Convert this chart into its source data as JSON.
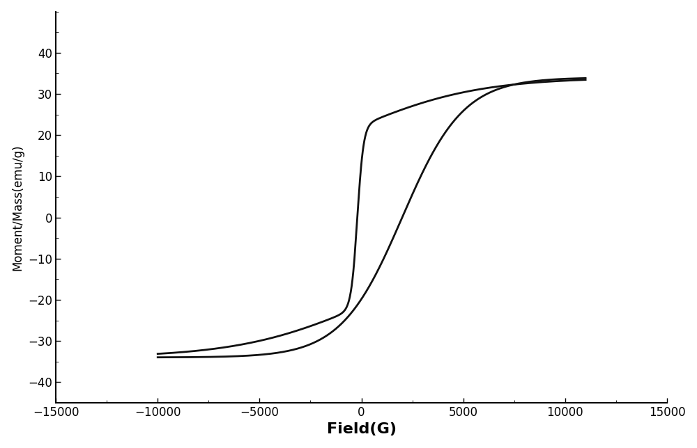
{
  "xlabel": "Field(G)",
  "ylabel": "Moment/Mass(emu/g)",
  "xlim": [
    -15000,
    15000
  ],
  "ylim": [
    -45,
    50
  ],
  "yticks": [
    -40,
    -30,
    -20,
    -10,
    0,
    10,
    20,
    30,
    40
  ],
  "xticks": [
    -15000,
    -10000,
    -5000,
    0,
    5000,
    10000,
    15000
  ],
  "line_color": "#111111",
  "line_width": 2.0,
  "background_color": "#ffffff",
  "xlabel_fontsize": 16,
  "ylabel_fontsize": 12,
  "tick_fontsize": 12,
  "figsize": [
    10.0,
    6.44
  ],
  "dpi": 100
}
